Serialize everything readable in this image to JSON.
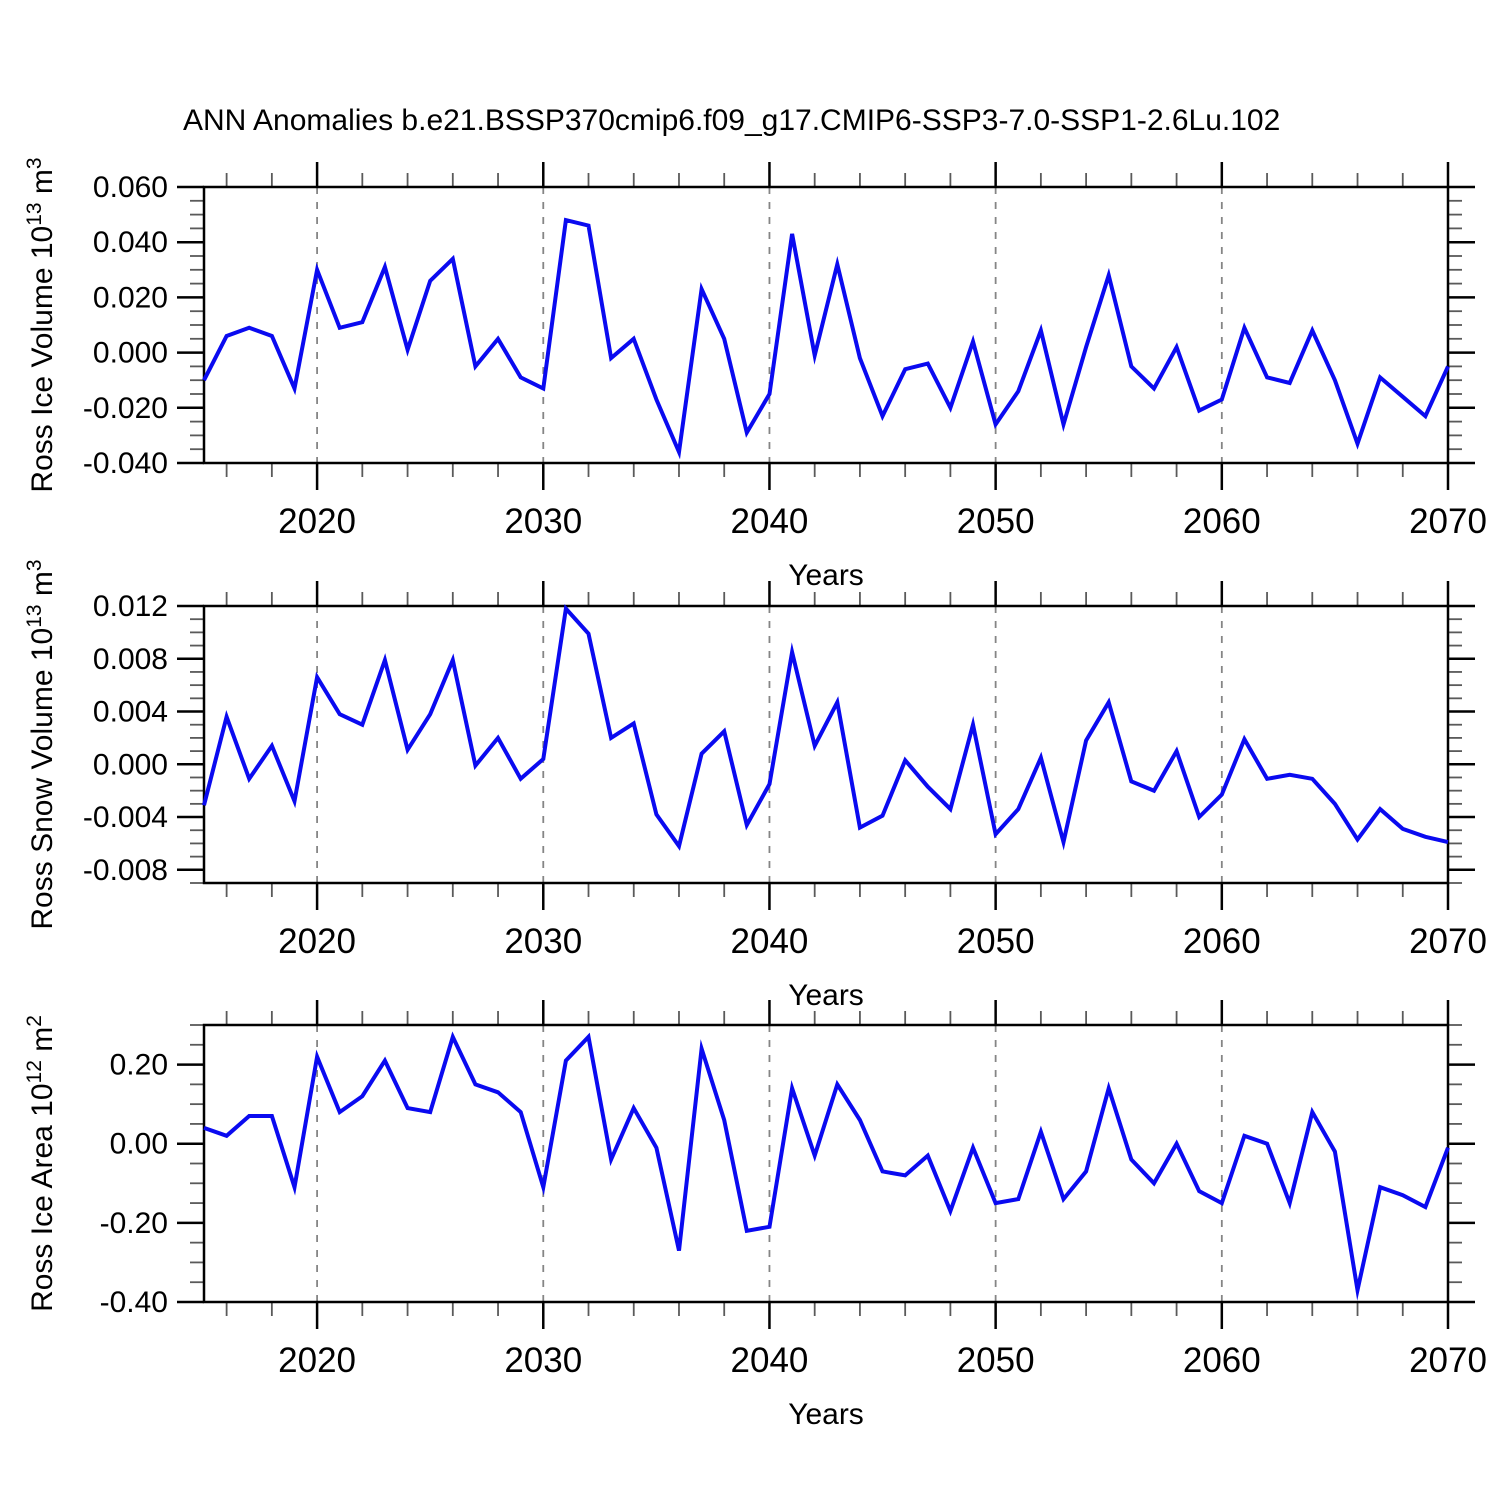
{
  "title": "ANN Anomalies b.e21.BSSP370cmip6.f09_g17.CMIP6-SSP3-7.0-SSP1-2.6Lu.102",
  "colors": {
    "line": "#0a0af0",
    "axis": "#000000",
    "grid": "#858585",
    "minor_tick": "#5a5a5a",
    "text": "#000000",
    "background": "#ffffff"
  },
  "x_axis": {
    "label": "Years",
    "min": 2015,
    "max": 2070,
    "major_ticks": [
      2020,
      2030,
      2040,
      2050,
      2060,
      2070
    ],
    "major_labels": [
      "2020",
      "2030",
      "2040",
      "2050",
      "2060",
      "2070"
    ],
    "minor_step": 2,
    "grid_years": [
      2020,
      2030,
      2040,
      2050,
      2060
    ]
  },
  "years": [
    2015,
    2016,
    2017,
    2018,
    2019,
    2020,
    2021,
    2022,
    2023,
    2024,
    2025,
    2026,
    2027,
    2028,
    2029,
    2030,
    2031,
    2032,
    2033,
    2034,
    2035,
    2036,
    2037,
    2038,
    2039,
    2040,
    2041,
    2042,
    2043,
    2044,
    2045,
    2046,
    2047,
    2048,
    2049,
    2050,
    2051,
    2052,
    2053,
    2054,
    2055,
    2056,
    2057,
    2058,
    2059,
    2060,
    2061,
    2062,
    2063,
    2064,
    2065,
    2066,
    2067,
    2068,
    2069,
    2070
  ],
  "chart_data": [
    {
      "type": "line",
      "name": "ross-ice-volume",
      "ylabel_unicode": "Ross Ice Volume 10¹³ m³",
      "ylabel_parts": [
        {
          "t": "Ross Ice Volume 10"
        },
        {
          "t": "13",
          "sup": true
        },
        {
          "t": " m"
        },
        {
          "t": "3",
          "sup": true
        }
      ],
      "xlabel": "Years",
      "ylim": [
        -0.04,
        0.06
      ],
      "ytick_values": [
        -0.04,
        -0.02,
        0.0,
        0.02,
        0.04,
        0.06
      ],
      "ytick_labels": [
        "-0.040",
        "-0.020",
        "0.000",
        "0.020",
        "0.040",
        "0.060"
      ],
      "yminor_step": 0.005,
      "values": [
        -0.01,
        0.006,
        0.009,
        0.006,
        -0.013,
        0.03,
        0.009,
        0.011,
        0.031,
        0.001,
        0.026,
        0.034,
        -0.005,
        0.005,
        -0.009,
        -0.013,
        0.048,
        0.046,
        -0.002,
        0.005,
        -0.017,
        -0.036,
        0.023,
        0.005,
        -0.029,
        -0.015,
        0.043,
        -0.001,
        0.032,
        -0.002,
        -0.023,
        -0.006,
        -0.004,
        -0.02,
        0.004,
        -0.026,
        -0.014,
        0.008,
        -0.026,
        0.002,
        0.028,
        -0.005,
        -0.013,
        0.002,
        -0.021,
        -0.017,
        0.009,
        -0.009,
        -0.011,
        0.008,
        -0.01,
        -0.033,
        -0.009,
        -0.016,
        -0.023,
        -0.005
      ]
    },
    {
      "type": "line",
      "name": "ross-snow-volume",
      "ylabel_unicode": "Ross Snow Volume 10¹³ m³",
      "ylabel_parts": [
        {
          "t": "Ross Snow Volume 10"
        },
        {
          "t": "13",
          "sup": true
        },
        {
          "t": " m"
        },
        {
          "t": "3",
          "sup": true
        }
      ],
      "xlabel": "Years",
      "ylim": [
        -0.009,
        0.012
      ],
      "ytick_values": [
        -0.008,
        -0.004,
        0.0,
        0.004,
        0.008,
        0.012
      ],
      "ytick_labels": [
        "-0.008",
        "-0.004",
        "0.000",
        "0.004",
        "0.008",
        "0.012"
      ],
      "yminor_step": 0.001,
      "values": [
        -0.0031,
        0.0036,
        -0.0011,
        0.0014,
        -0.0028,
        0.0066,
        0.0038,
        0.003,
        0.0079,
        0.0011,
        0.0038,
        0.0079,
        -0.0001,
        0.002,
        -0.0011,
        0.0004,
        0.0118,
        0.0099,
        0.002,
        0.0031,
        -0.0038,
        -0.0062,
        0.0008,
        0.0025,
        -0.0046,
        -0.0015,
        0.0085,
        0.0014,
        0.0047,
        -0.0048,
        -0.0039,
        0.0003,
        -0.0017,
        -0.0034,
        0.003,
        -0.0053,
        -0.0034,
        0.0005,
        -0.0059,
        0.0018,
        0.0047,
        -0.0013,
        -0.002,
        0.001,
        -0.004,
        -0.0023,
        0.0019,
        -0.0011,
        -0.0008,
        -0.0011,
        -0.003,
        -0.0057,
        -0.0034,
        -0.0049,
        -0.0055,
        -0.0059
      ]
    },
    {
      "type": "line",
      "name": "ross-ice-area",
      "ylabel_unicode": "Ross Ice Area 10¹² m²",
      "ylabel_parts": [
        {
          "t": "Ross Ice Area 10"
        },
        {
          "t": "12",
          "sup": true
        },
        {
          "t": " m"
        },
        {
          "t": "2",
          "sup": true
        }
      ],
      "xlabel": "Years",
      "ylim": [
        -0.4,
        0.3
      ],
      "ytick_values": [
        -0.4,
        -0.2,
        0.0,
        0.2
      ],
      "ytick_labels": [
        "-0.40",
        "-0.20",
        "0.00",
        "0.20"
      ],
      "yminor_step": 0.05,
      "values": [
        0.04,
        0.02,
        0.07,
        0.07,
        -0.11,
        0.22,
        0.08,
        0.12,
        0.21,
        0.09,
        0.08,
        0.27,
        0.15,
        0.13,
        0.08,
        -0.11,
        0.21,
        0.27,
        -0.04,
        0.09,
        -0.01,
        -0.27,
        0.24,
        0.06,
        -0.22,
        -0.21,
        0.14,
        -0.03,
        0.15,
        0.06,
        -0.07,
        -0.08,
        -0.03,
        -0.17,
        -0.01,
        -0.15,
        -0.14,
        0.03,
        -0.14,
        -0.07,
        0.14,
        -0.04,
        -0.1,
        0.0,
        -0.12,
        -0.15,
        0.02,
        0.0,
        -0.15,
        0.08,
        -0.02,
        -0.37,
        -0.11,
        -0.13,
        -0.16,
        -0.01
      ]
    }
  ]
}
